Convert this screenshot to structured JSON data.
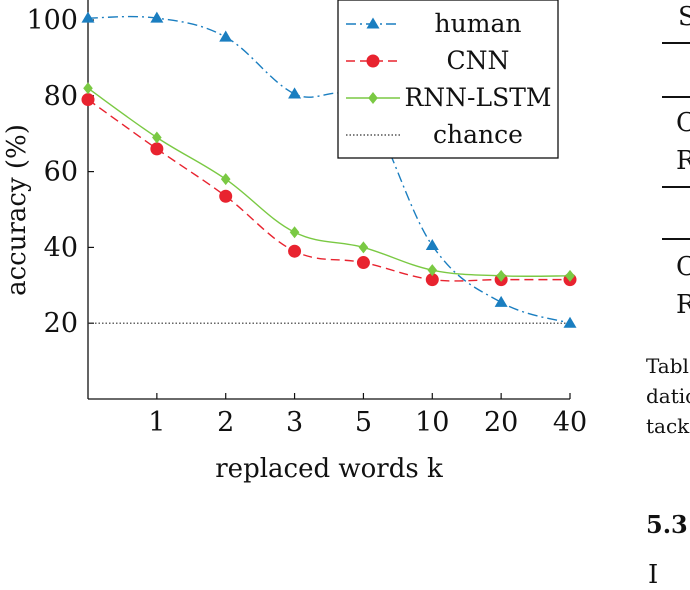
{
  "chart_data": {
    "type": "line",
    "categories": [
      "0",
      "1",
      "2",
      "3",
      "5",
      "10",
      "20",
      "40"
    ],
    "tick_labels": [
      "1",
      "2",
      "3",
      "5",
      "10",
      "20",
      "40"
    ],
    "xlabel": "replaced words k",
    "ylabel": "accuracy (%)",
    "ylim": [
      0,
      105
    ],
    "yticks": [
      20,
      40,
      60,
      80,
      100
    ],
    "grid": false,
    "legend_position": "top-right",
    "series": [
      {
        "name": "human",
        "color": "#1a7ec0",
        "marker": "triangle",
        "dash": "dashdot",
        "values": [
          100.5,
          100.5,
          95.5,
          80.5,
          77.5,
          40.5,
          25.5,
          20.0
        ]
      },
      {
        "name": "CNN",
        "color": "#e8232f",
        "marker": "circle",
        "dash": "dashed",
        "values": [
          79.0,
          66.0,
          53.5,
          39.0,
          36.0,
          31.5,
          31.5,
          31.5
        ]
      },
      {
        "name": "RNN-LSTM",
        "color": "#7ac943",
        "marker": "diamond",
        "dash": "solid",
        "values": [
          82.0,
          69.0,
          58.0,
          44.0,
          40.0,
          34.0,
          32.5,
          32.5
        ]
      },
      {
        "name": "chance",
        "color": "#333333",
        "marker": "none",
        "dash": "dotted",
        "values": [
          20,
          20,
          20,
          20,
          20,
          20,
          20,
          20
        ]
      }
    ]
  },
  "side_text": {
    "top": "S",
    "row1": "C",
    "row2": "R",
    "row3": "C",
    "row4": "R",
    "caption1": "Tabl",
    "caption2": "datio",
    "caption3": "tack",
    "section": "5.3",
    "bottom": "I"
  }
}
